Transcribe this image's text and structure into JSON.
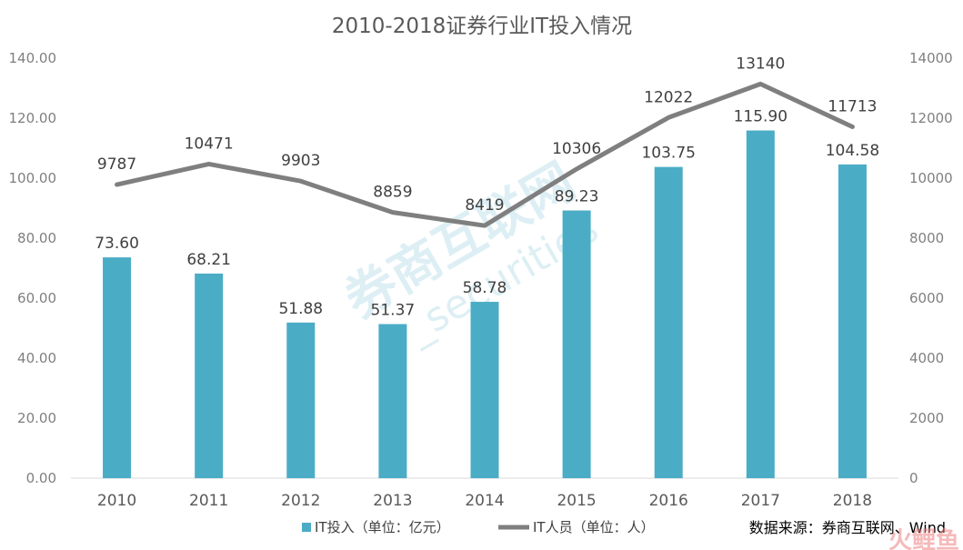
{
  "chart_data": {
    "type": "bar",
    "title": "2010-2018证券行业IT投入情况",
    "categories": [
      "2010",
      "2011",
      "2012",
      "2013",
      "2014",
      "2015",
      "2016",
      "2017",
      "2018"
    ],
    "series": [
      {
        "name": "IT投入（单位：亿元）",
        "type": "bar",
        "axis": "left",
        "color": "#4bacc6",
        "values": [
          73.6,
          68.21,
          51.88,
          51.37,
          58.78,
          89.23,
          103.75,
          115.9,
          104.58
        ],
        "labels": [
          "73.60",
          "68.21",
          "51.88",
          "51.37",
          "58.78",
          "89.23",
          "103.75",
          "115.90",
          "104.58"
        ]
      },
      {
        "name": "IT人员（单位：人）",
        "type": "line",
        "axis": "right",
        "color": "#7f7f7f",
        "values": [
          9787,
          10471,
          9903,
          8859,
          8419,
          10306,
          12022,
          13140,
          11713
        ],
        "labels": [
          "9787",
          "10471",
          "9903",
          "8859",
          "8419",
          "10306",
          "12022",
          "13140",
          "11713"
        ]
      }
    ],
    "y_left": {
      "min": 0,
      "max": 140,
      "ticks": [
        "0.00",
        "20.00",
        "40.00",
        "60.00",
        "80.00",
        "100.00",
        "120.00",
        "140.00"
      ]
    },
    "y_right": {
      "min": 0,
      "max": 14000,
      "ticks": [
        "0",
        "2000",
        "4000",
        "6000",
        "8000",
        "10000",
        "12000",
        "14000"
      ]
    },
    "legend_position": "bottom",
    "grid": false
  },
  "source_text": "数据来源：券商互联网、Wind",
  "watermark": {
    "main": "券商互联网",
    "sub": "_securities"
  },
  "logo": {
    "text": "火鲤鱼"
  }
}
